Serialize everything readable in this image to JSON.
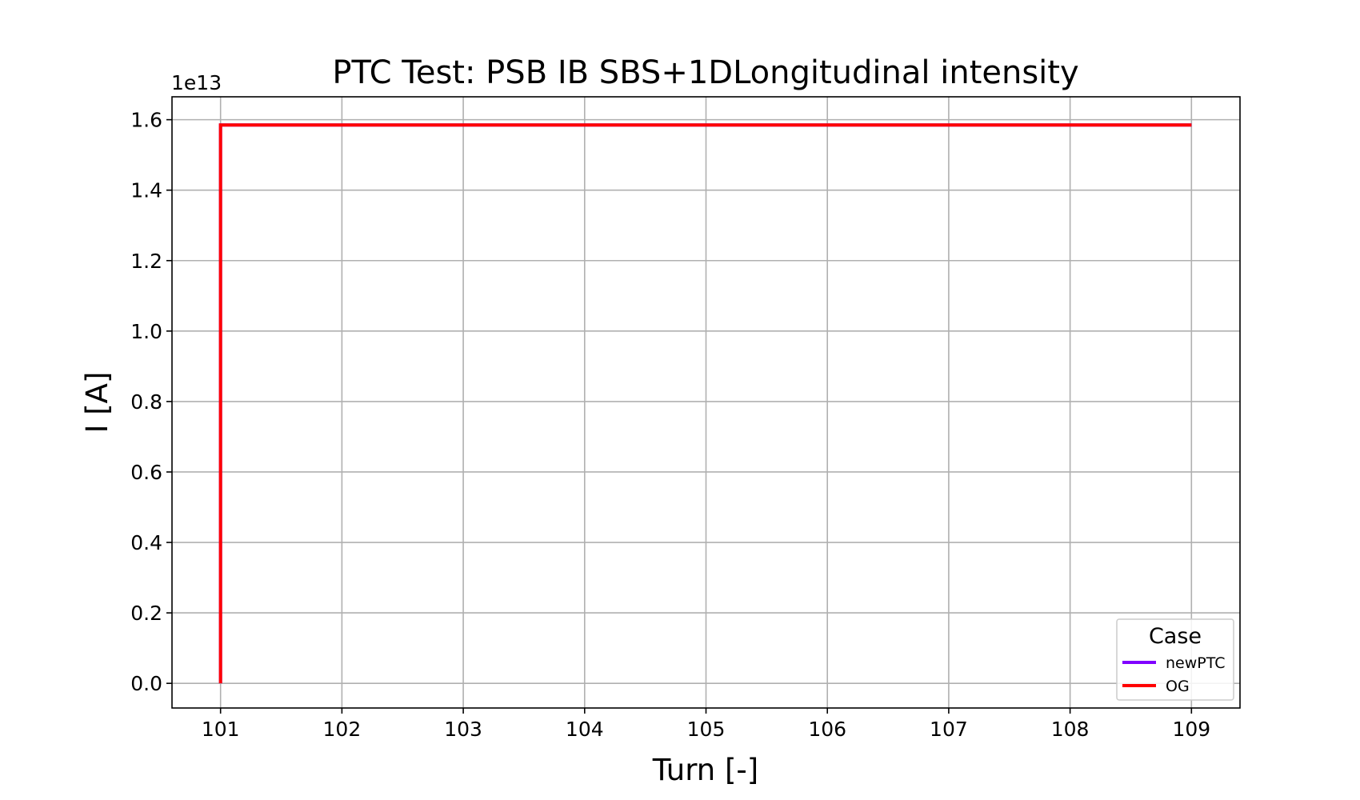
{
  "chart_data": {
    "type": "line",
    "title": "PTC Test: PSB IB SBS+1DLongitudinal intensity",
    "xlabel": "Turn [-]",
    "ylabel": "I [A]",
    "y_offset_label": "1e13",
    "y_multiplier": 10000000000000.0,
    "xlim": [
      100.6,
      109.4
    ],
    "ylim": [
      -0.07,
      1.665
    ],
    "x_ticks": [
      101,
      102,
      103,
      104,
      105,
      106,
      107,
      108,
      109
    ],
    "x_tick_labels": [
      "101",
      "102",
      "103",
      "104",
      "105",
      "106",
      "107",
      "108",
      "109"
    ],
    "y_ticks": [
      0.0,
      0.2,
      0.4,
      0.6,
      0.8,
      1.0,
      1.2,
      1.4,
      1.6
    ],
    "y_tick_labels": [
      "0.0",
      "0.2",
      "0.4",
      "0.6",
      "0.8",
      "1.0",
      "1.2",
      "1.4",
      "1.6"
    ],
    "grid": true,
    "legend": {
      "title": "Case",
      "placement": "lower-right"
    },
    "series": [
      {
        "name": "newPTC",
        "color": "#8000ff",
        "x": [
          101,
          101,
          102,
          103,
          104,
          105,
          106,
          107,
          108,
          109
        ],
        "y": [
          0.0,
          1.585,
          1.585,
          1.585,
          1.585,
          1.585,
          1.585,
          1.585,
          1.585,
          1.585
        ]
      },
      {
        "name": "OG",
        "color": "#ff0000",
        "x": [
          101,
          101,
          102,
          103,
          104,
          105,
          106,
          107,
          108,
          109
        ],
        "y": [
          0.0,
          1.585,
          1.585,
          1.585,
          1.585,
          1.585,
          1.585,
          1.585,
          1.585,
          1.585
        ]
      }
    ]
  }
}
